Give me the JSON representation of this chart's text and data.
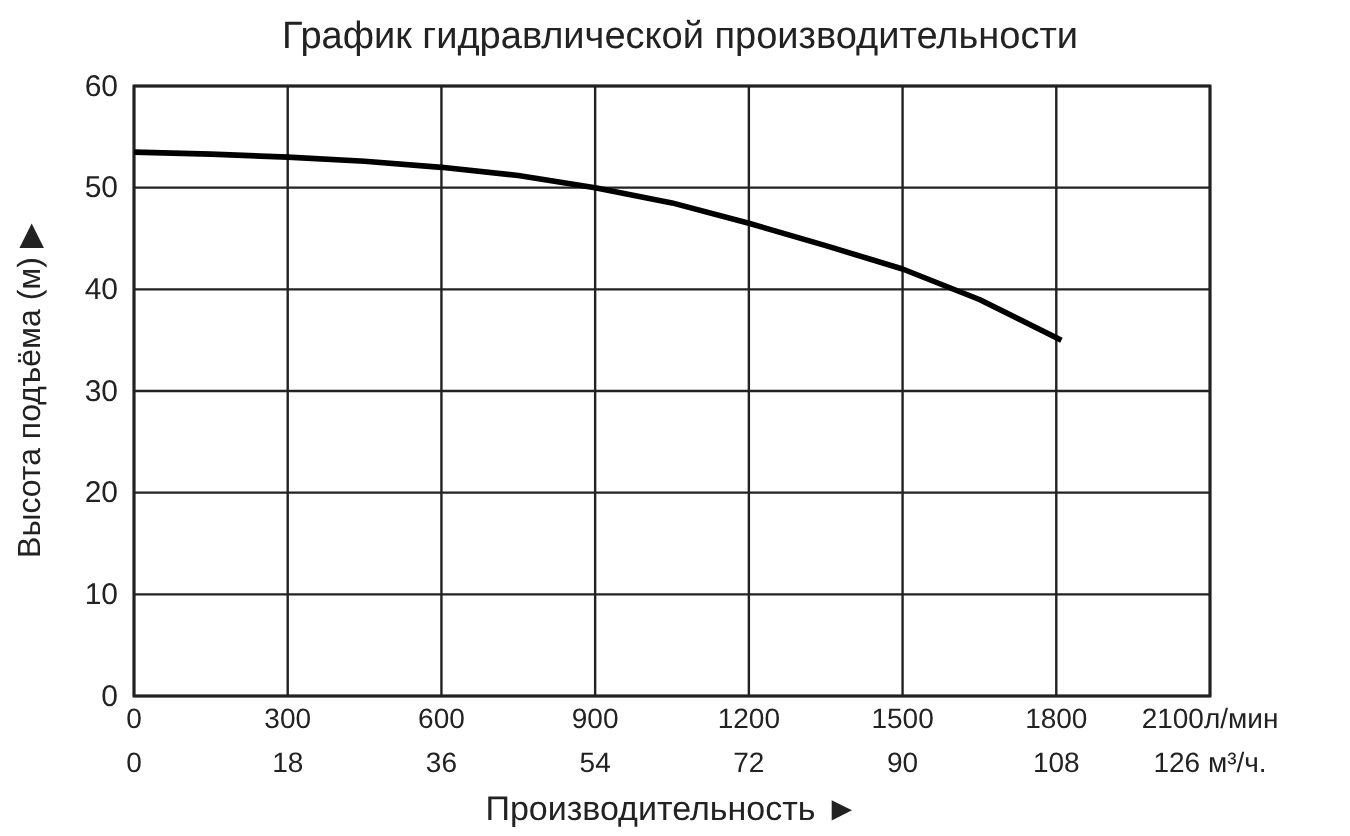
{
  "chart_data": {
    "type": "line",
    "title": "График гидравлической производительности",
    "xlabel": "Производительность ►",
    "ylabel": "Высота подъёма (м) ▶",
    "x": [
      0,
      150,
      300,
      450,
      600,
      750,
      900,
      1050,
      1200,
      1350,
      1500,
      1650,
      1810
    ],
    "series": [
      {
        "color": "#000000",
        "values": [
          53.5,
          53.3,
          53,
          52.6,
          52,
          51.2,
          50,
          48.5,
          46.5,
          44.3,
          42,
          39,
          35
        ]
      }
    ],
    "xlim": [
      0,
      2100
    ],
    "xticks": [
      0,
      300,
      600,
      900,
      1200,
      1500,
      1800,
      {
        "value": 2100,
        "label": "2100л/мин"
      }
    ],
    "x2lim": [
      0,
      126
    ],
    "x2ticks": [
      0,
      18,
      36,
      54,
      72,
      90,
      108,
      {
        "value": 126,
        "label": "126 м³/ч."
      }
    ],
    "ylim": [
      0,
      60
    ],
    "yticks": [
      0,
      10,
      20,
      30,
      40,
      50,
      60
    ],
    "grid": true,
    "marker": "none",
    "line_style": "solid"
  }
}
